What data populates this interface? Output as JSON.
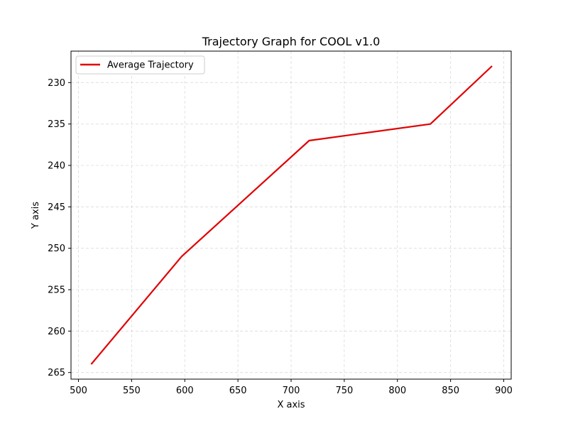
{
  "chart_data": {
    "type": "line",
    "title": "Trajectory Graph for COOL v1.0",
    "xlabel": "X axis",
    "ylabel": "Y axis",
    "xlim": [
      493,
      907
    ],
    "ylim": [
      265.8,
      226.2
    ],
    "y_inverted": true,
    "x_ticks": [
      500,
      550,
      600,
      650,
      700,
      750,
      800,
      850,
      900
    ],
    "y_ticks": [
      230,
      235,
      240,
      245,
      250,
      255,
      260,
      265
    ],
    "grid": true,
    "legend_position": "upper-left",
    "series": [
      {
        "name": "Average Trajectory",
        "color": "#e00000",
        "x": [
          512,
          597,
          717,
          831,
          889
        ],
        "y": [
          264,
          251,
          237,
          235,
          228
        ]
      }
    ]
  }
}
